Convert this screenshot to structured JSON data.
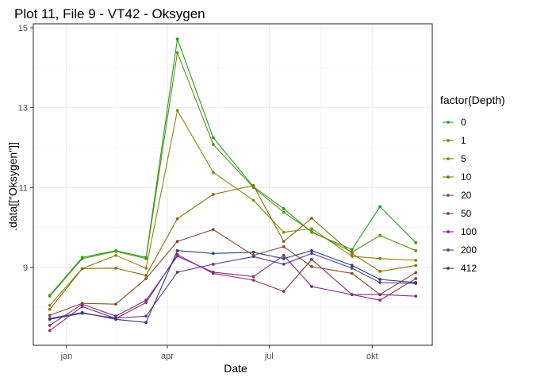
{
  "title": "Plot 11, File 9 - VT42  -  Oksygen",
  "chart_data": {
    "type": "line",
    "title": "Plot 11, File 9 - VT42  -  Oksygen",
    "xlabel": "Date",
    "ylabel": ".data[[\"Oksygen\"]]",
    "x_ticks": [
      "jan",
      "apr",
      "jul",
      "okt"
    ],
    "y_ticks": [
      9,
      11,
      13,
      15
    ],
    "ylim": [
      7.05,
      15.1
    ],
    "grid": true,
    "legend_title": "factor(Depth)",
    "legend_position": "right",
    "x": [
      "2024-12-17",
      "2025-01-15",
      "2025-02-14",
      "2025-03-13",
      "2025-04-10",
      "2025-05-12",
      "2025-06-17",
      "2025-07-14",
      "2025-08-08",
      "2025-09-13",
      "2025-10-08",
      "2025-11-09"
    ],
    "series": [
      {
        "name": "0",
        "color": "#1fa01f",
        "values": [
          8.3,
          9.25,
          9.42,
          9.25,
          14.72,
          12.25,
          11.02,
          10.47,
          9.88,
          9.45,
          10.52,
          9.62
        ]
      },
      {
        "name": "1",
        "color": "#5a9610",
        "values": [
          8.28,
          9.22,
          9.4,
          9.22,
          14.38,
          12.08,
          11.0,
          10.38,
          9.9,
          9.38,
          9.8,
          9.42
        ]
      },
      {
        "name": "5",
        "color": "#88880a",
        "values": [
          8.05,
          8.97,
          9.3,
          8.98,
          12.93,
          11.38,
          10.68,
          9.88,
          9.97,
          9.28,
          9.22,
          9.18
        ]
      },
      {
        "name": "10",
        "color": "#8f6a0a",
        "values": [
          7.95,
          8.97,
          8.98,
          8.8,
          10.22,
          10.83,
          11.05,
          9.65,
          10.23,
          9.35,
          8.9,
          9.05
        ]
      },
      {
        "name": "20",
        "color": "#8a4a2a",
        "values": [
          7.8,
          8.1,
          8.08,
          8.72,
          9.65,
          9.95,
          9.3,
          9.52,
          9.02,
          8.85,
          8.32,
          8.87
        ]
      },
      {
        "name": "50",
        "color": "#93305a",
        "values": [
          7.42,
          8.02,
          7.72,
          8.12,
          9.32,
          8.85,
          8.68,
          8.4,
          9.2,
          8.32,
          8.18,
          8.72
        ]
      },
      {
        "name": "100",
        "color": "#7a2e8c",
        "values": [
          7.55,
          8.08,
          7.78,
          8.18,
          9.28,
          8.88,
          8.77,
          9.3,
          8.52,
          8.32,
          8.32,
          8.28
        ]
      },
      {
        "name": "200",
        "color": "#553a8f",
        "values": [
          7.7,
          7.85,
          7.73,
          7.78,
          8.88,
          9.08,
          9.27,
          9.08,
          9.35,
          8.98,
          8.62,
          8.6
        ]
      },
      {
        "name": "412",
        "color": "#2e3d78",
        "values": [
          7.72,
          7.87,
          7.7,
          7.62,
          9.42,
          9.35,
          9.38,
          9.22,
          9.42,
          9.05,
          8.7,
          8.62
        ]
      }
    ]
  }
}
